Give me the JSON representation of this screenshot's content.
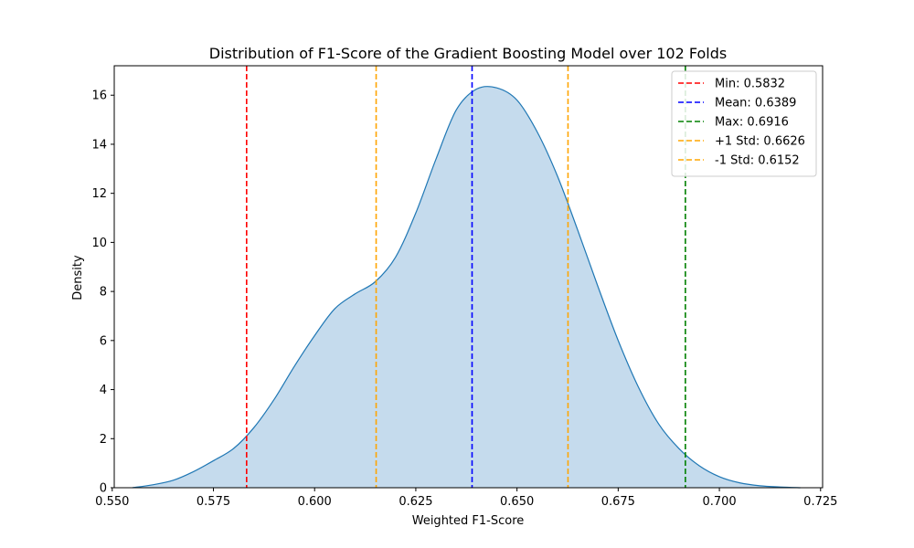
{
  "chart_data": {
    "type": "area",
    "title": "Distribution of F1-Score of the Gradient Boosting Model over 102 Folds",
    "xlabel": "Weighted F1-Score",
    "ylabel": "Density",
    "xlim": [
      0.5505,
      0.7255
    ],
    "ylim": [
      0,
      17.2
    ],
    "xticks": [
      0.55,
      0.575,
      0.6,
      0.625,
      0.65,
      0.675,
      0.7,
      0.725
    ],
    "xtick_labels": [
      "0.550",
      "0.575",
      "0.600",
      "0.625",
      "0.650",
      "0.675",
      "0.700",
      "0.725"
    ],
    "yticks": [
      0,
      2,
      4,
      6,
      8,
      10,
      12,
      14,
      16
    ],
    "ytick_labels": [
      "0",
      "2",
      "4",
      "6",
      "8",
      "10",
      "12",
      "14",
      "16"
    ],
    "grid": false,
    "legend_position": "top-right",
    "density_curve": {
      "color": "#1f77b4",
      "fill_color": "#c5dbed",
      "x": [
        0.555,
        0.56,
        0.565,
        0.57,
        0.575,
        0.58,
        0.585,
        0.59,
        0.595,
        0.6,
        0.605,
        0.61,
        0.615,
        0.62,
        0.625,
        0.63,
        0.635,
        0.64,
        0.645,
        0.65,
        0.655,
        0.66,
        0.665,
        0.67,
        0.675,
        0.68,
        0.685,
        0.69,
        0.695,
        0.7,
        0.705,
        0.71,
        0.715,
        0.72
      ],
      "y": [
        0.0,
        0.12,
        0.3,
        0.65,
        1.1,
        1.6,
        2.45,
        3.6,
        4.95,
        6.2,
        7.3,
        7.9,
        8.4,
        9.4,
        11.2,
        13.4,
        15.4,
        16.25,
        16.3,
        15.8,
        14.5,
        12.7,
        10.5,
        8.2,
        6.0,
        4.1,
        2.6,
        1.6,
        0.9,
        0.45,
        0.2,
        0.08,
        0.03,
        0.0
      ]
    },
    "lines": [
      {
        "name": "Min: 0.5832",
        "x": 0.5832,
        "color": "#ff0000"
      },
      {
        "name": "Mean: 0.6389",
        "x": 0.6389,
        "color": "#0000ff"
      },
      {
        "name": "Max: 0.6916",
        "x": 0.6916,
        "color": "#008000"
      },
      {
        "name": "+1 Std: 0.6626",
        "x": 0.6626,
        "color": "#ffa500"
      },
      {
        "name": "-1 Std: 0.6152",
        "x": 0.6152,
        "color": "#ffa500"
      }
    ]
  }
}
